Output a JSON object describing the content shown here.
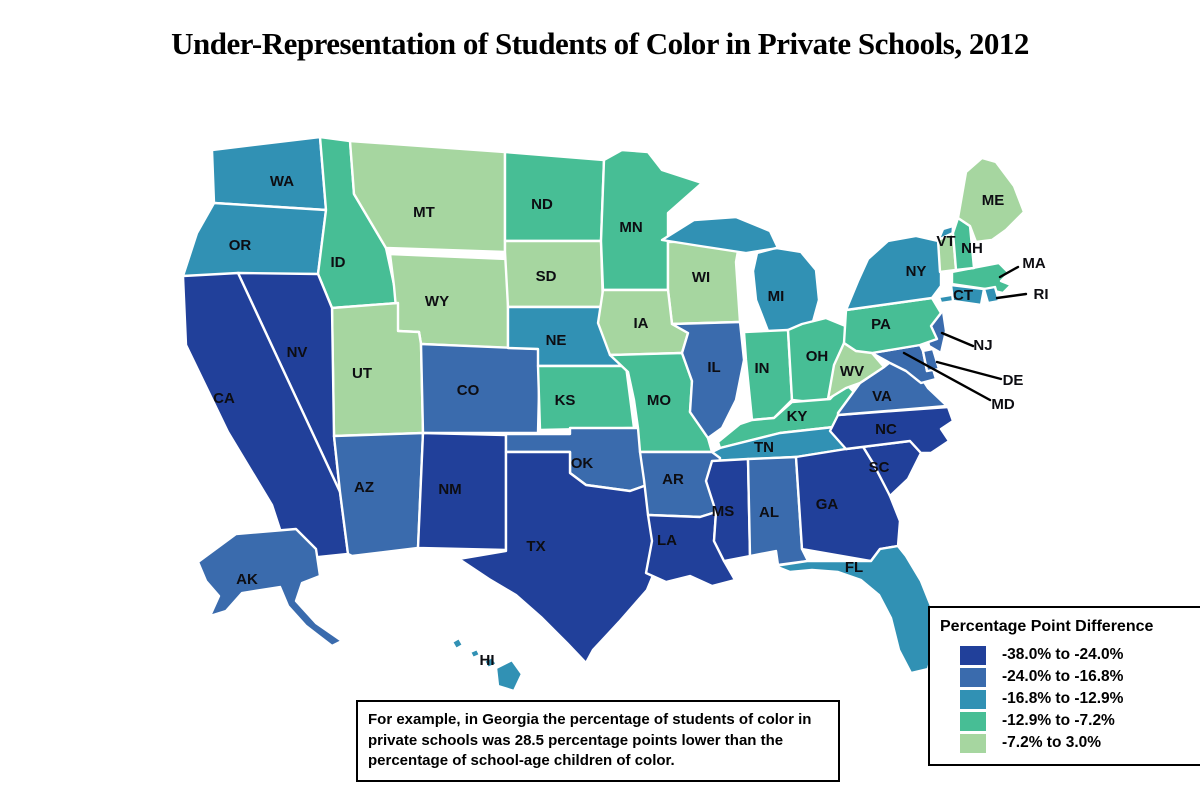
{
  "title": "Under-Representation of Students of Color in Private Schools, 2012",
  "chart_data": {
    "type": "choropleth",
    "region": "United States",
    "year": "2012",
    "legend_title": "Percentage Point Difference",
    "classes": [
      {
        "label": "-38.0% to -24.0%",
        "color": "#21409A",
        "states": [
          "CA",
          "NV",
          "NM",
          "TX",
          "LA",
          "MS",
          "GA",
          "NC",
          "SC"
        ]
      },
      {
        "label": "-24.0% to -16.8%",
        "color": "#3A6BAD",
        "states": [
          "AK",
          "AZ",
          "CO",
          "OK",
          "AR",
          "AL",
          "IL",
          "NJ",
          "DE",
          "MD",
          "VA"
        ]
      },
      {
        "label": "-16.8% to -12.9%",
        "color": "#3191B4",
        "states": [
          "WA",
          "OR",
          "NE",
          "MI",
          "NY",
          "CT",
          "RI",
          "TN",
          "FL",
          "HI"
        ]
      },
      {
        "label": "-12.9% to -7.2%",
        "color": "#47BE95",
        "states": [
          "ID",
          "ND",
          "MN",
          "KS",
          "MO",
          "IN",
          "OH",
          "KY",
          "PA",
          "MA",
          "NH"
        ]
      },
      {
        "label": "-7.2% to 3.0%",
        "color": "#A6D6A0",
        "states": [
          "MT",
          "WY",
          "UT",
          "SD",
          "WI",
          "IA",
          "WV",
          "ME",
          "VT"
        ]
      }
    ]
  },
  "note": {
    "text": "For example, in Georgia the percentage of students of color in private schools was 28.5 percentage points lower than the percentage of school-age children of color."
  }
}
